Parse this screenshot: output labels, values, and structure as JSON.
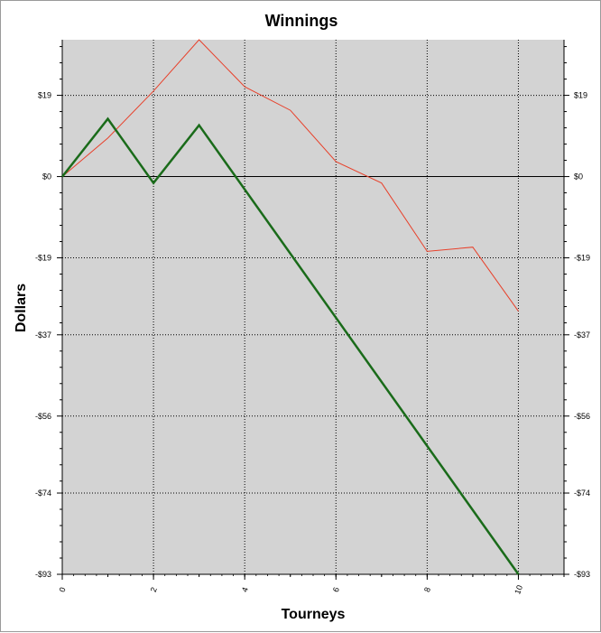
{
  "chart_data": {
    "type": "line",
    "title": "Winnings",
    "xlabel": "Tourneys",
    "ylabel": "Dollars",
    "xlim": [
      0,
      11
    ],
    "ylim": [
      -93,
      32
    ],
    "x_ticks": [
      0,
      2,
      4,
      6,
      8,
      10
    ],
    "y_ticks": [
      19,
      0,
      -19,
      -37,
      -56,
      -74,
      -93
    ],
    "y_tick_labels": [
      "$19",
      "$0",
      "-$19",
      "-$37",
      "-$56",
      "-$74",
      "-$93"
    ],
    "right_y_tick_labels": [
      "$19",
      "$0",
      "-$19",
      "-$37",
      "-$56",
      "-$74",
      "-$93"
    ],
    "grid": true,
    "colors": {
      "plot_background": "#d3d3d3",
      "zero_line": "#000000",
      "grid": "#000000"
    },
    "series": [
      {
        "color": "#e8402a",
        "x": [
          0,
          1,
          2,
          3,
          4,
          5,
          6,
          7,
          8,
          9,
          10
        ],
        "y": [
          0,
          9,
          20,
          32,
          21,
          15.5,
          3.5,
          -1.5,
          -17.5,
          -16.5,
          -31.5
        ]
      },
      {
        "color": "#1a6b1a",
        "x": [
          0,
          1,
          2,
          3,
          10
        ],
        "y": [
          0,
          13.5,
          -1.5,
          12,
          -93
        ]
      }
    ]
  }
}
